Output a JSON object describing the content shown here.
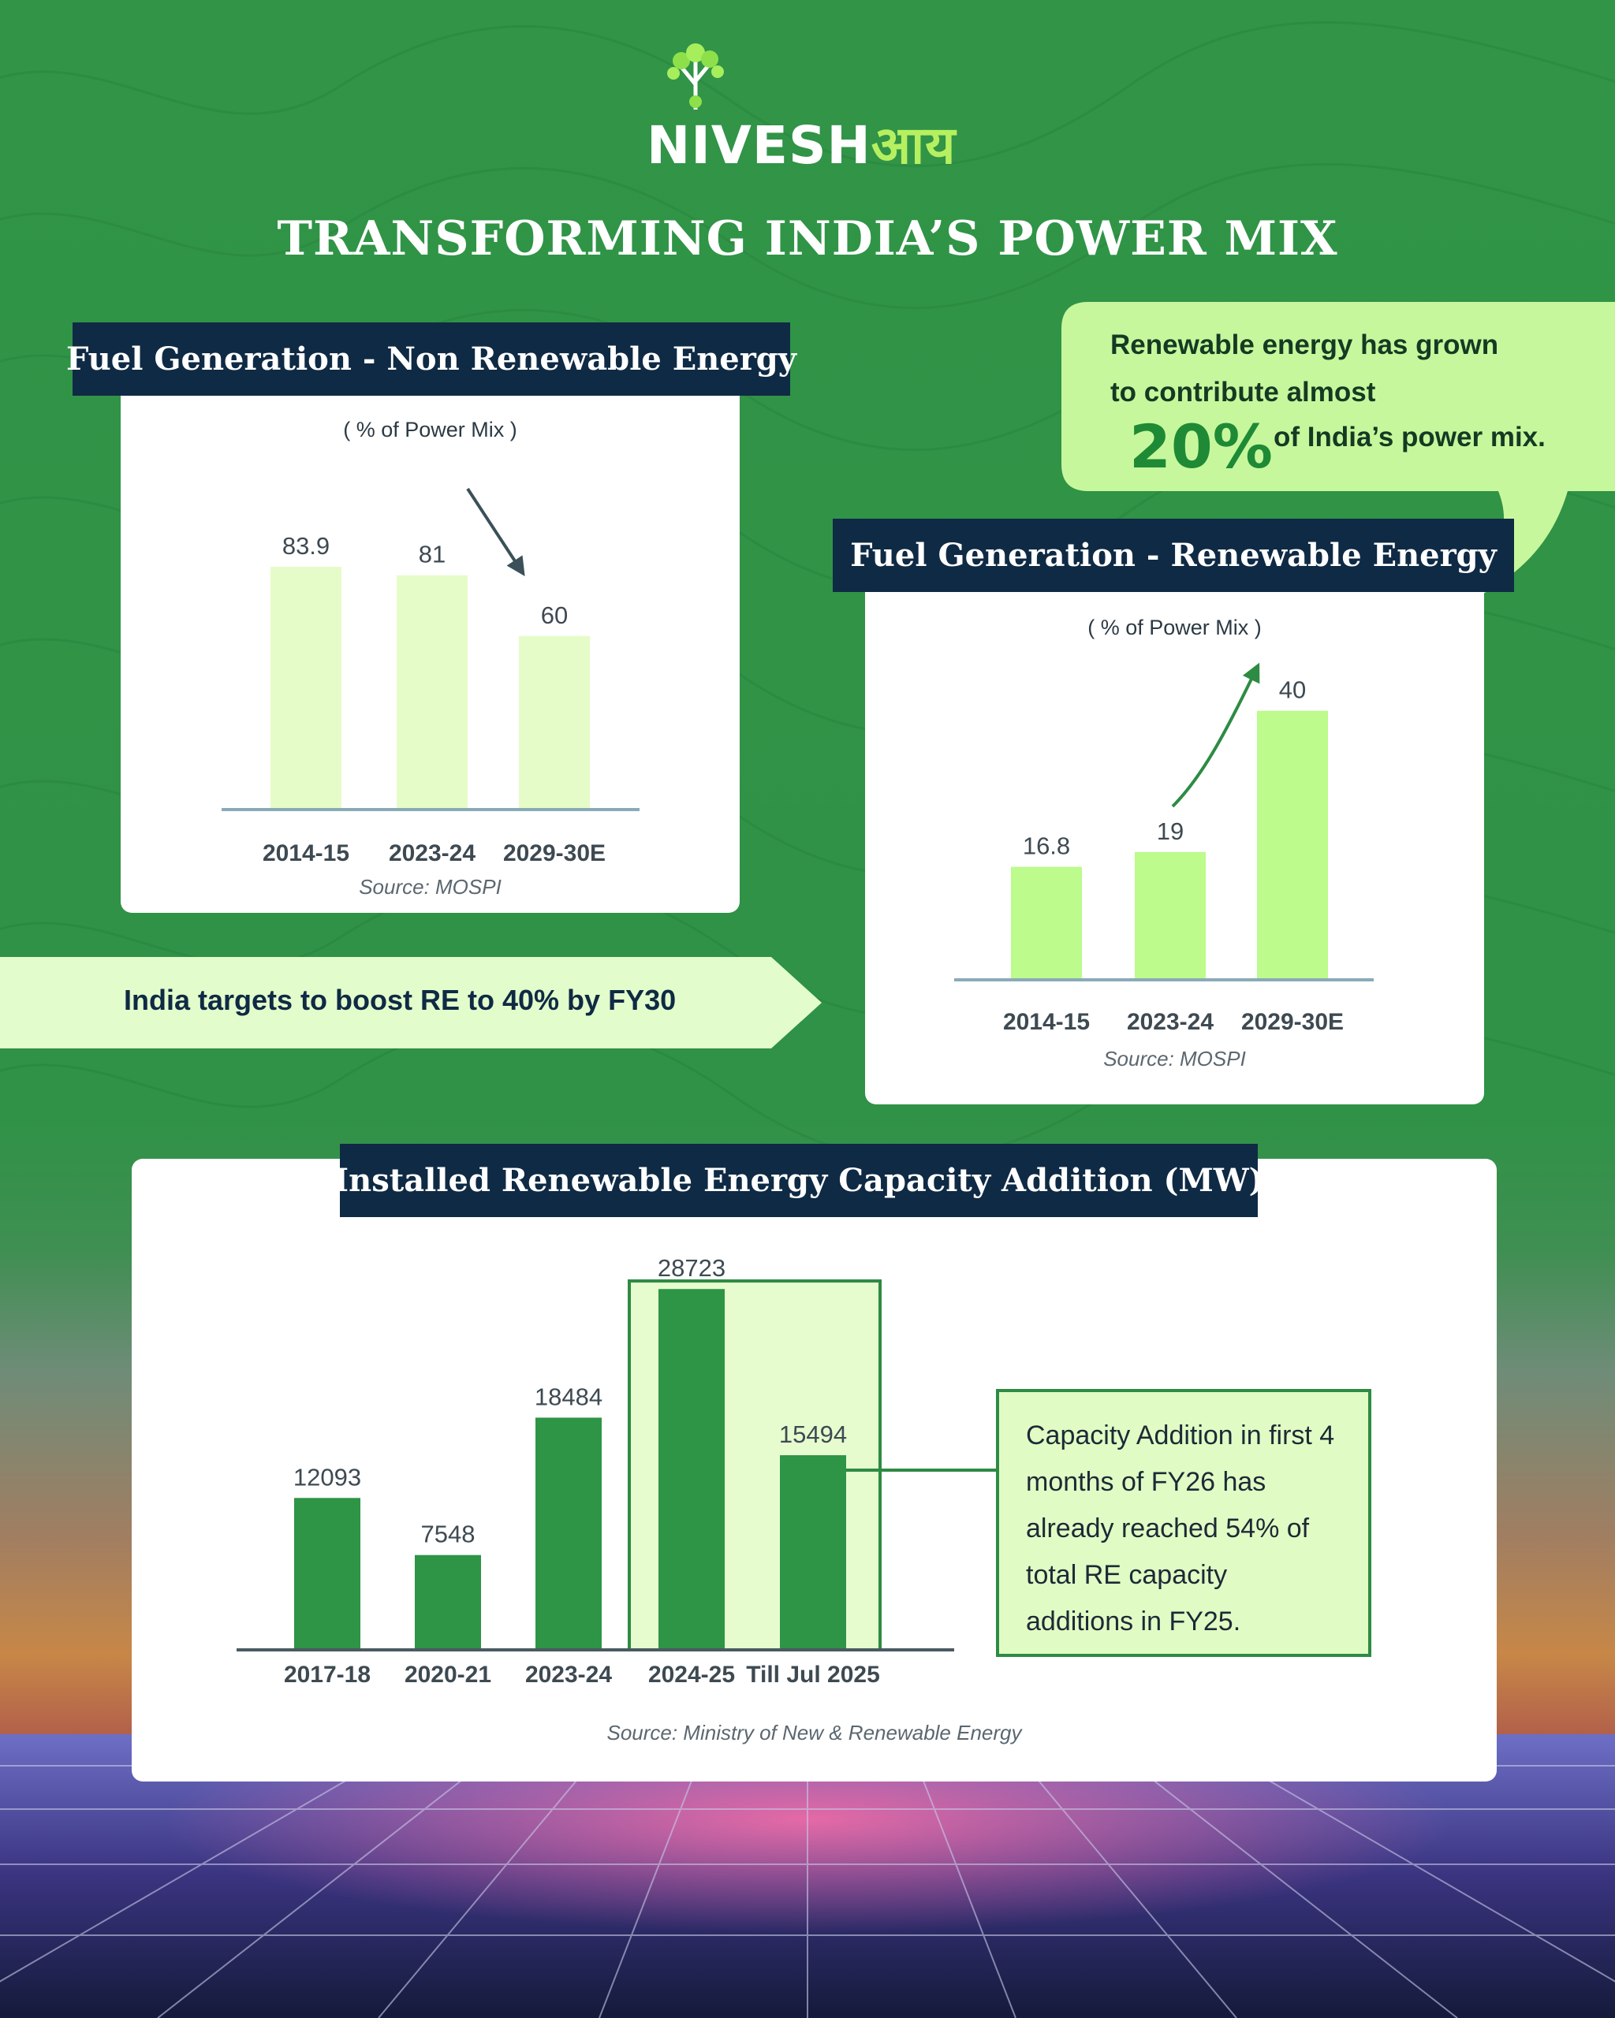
{
  "brand": {
    "name_latin": "NIVESH",
    "name_hindi": "आय"
  },
  "title": "TRANSFORMING INDIA’S POWER MIX",
  "callout": {
    "line1": "Renewable energy has grown",
    "line2": "to contribute almost",
    "percent": "20%",
    "line3": "of India’s power mix."
  },
  "banner": {
    "text": "India targets to boost RE to 40% by FY30"
  },
  "note": {
    "text": "Capacity Addition in first 4 months of FY26 has already reached 54% of total RE capacity additions in FY25."
  },
  "colors": {
    "background": "#319447",
    "header_navy": "#0f2a44",
    "bar_light": "#e6fcc8",
    "bar_lime": "#bcfb8c",
    "bar_green": "#2e9446",
    "callout_fill": "#c7f79c"
  },
  "chart_data": [
    {
      "type": "bar",
      "title": "Fuel Generation - Non Renewable Energy",
      "subtitle": "( % of Power Mix )",
      "categories": [
        "2014-15",
        "2023-24",
        "2029-30E"
      ],
      "values": [
        83.9,
        81,
        60
      ],
      "labels": [
        "83.9",
        "81",
        "60"
      ],
      "ylim": [
        0,
        100
      ],
      "source": "Source: MOSPI"
    },
    {
      "type": "bar",
      "title": "Fuel Generation - Renewable Energy",
      "subtitle": "( % of Power Mix )",
      "categories": [
        "2014-15",
        "2023-24",
        "2029-30E"
      ],
      "values": [
        16.8,
        19,
        40
      ],
      "labels": [
        "16.8",
        "19",
        "40"
      ],
      "ylim": [
        0,
        47
      ],
      "source": "Source: MOSPI"
    },
    {
      "type": "bar",
      "title": "Installed Renewable Energy Capacity Addition (MW)",
      "categories": [
        "2017-18",
        "2020-21",
        "2023-24",
        "2024-25",
        "Till Jul 2025"
      ],
      "values": [
        12093,
        7548,
        18484,
        28723,
        15494
      ],
      "labels": [
        "12093",
        "7548",
        "18484",
        "28723",
        "15494"
      ],
      "ylim": [
        0,
        32000
      ],
      "source": "Source: Ministry of New & Renewable Energy"
    }
  ]
}
